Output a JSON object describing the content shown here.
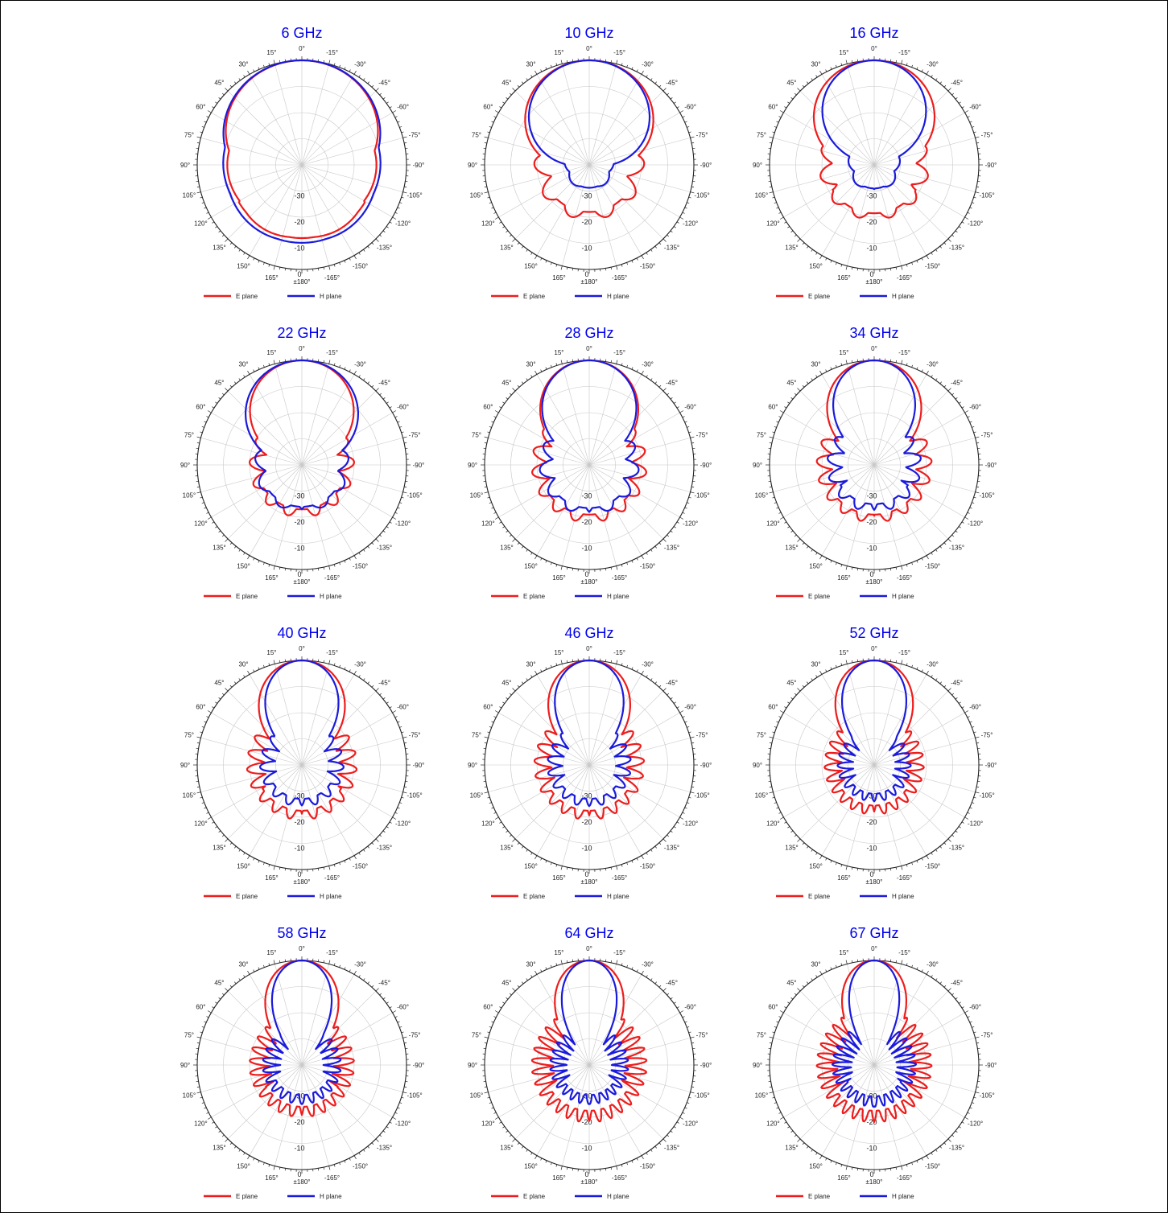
{
  "chart_data": [
    {
      "type": "line",
      "polar": true,
      "title": "6 GHz",
      "series": [
        {
          "name": "E plane",
          "color": "#ee1c1c",
          "min_db": -12.5,
          "peak_width_deg": 80,
          "sidelobe_amp": 1.0,
          "sidelobe_freq": 3
        },
        {
          "name": "H plane",
          "color": "#1a1adc",
          "min_db": -10.5,
          "peak_width_deg": 85,
          "sidelobe_amp": 0.6,
          "sidelobe_freq": 3
        }
      ]
    },
    {
      "type": "line",
      "polar": true,
      "title": "10 GHz",
      "series": [
        {
          "name": "E plane",
          "color": "#ee1c1c",
          "min_db": -25,
          "peak_width_deg": 60,
          "sidelobe_amp": 6,
          "sidelobe_freq": 5
        },
        {
          "name": "H plane",
          "color": "#1a1adc",
          "min_db": -32,
          "peak_width_deg": 55,
          "sidelobe_amp": 1.5,
          "sidelobe_freq": 3
        }
      ]
    },
    {
      "type": "line",
      "polar": true,
      "title": "16 GHz",
      "series": [
        {
          "name": "E plane",
          "color": "#ee1c1c",
          "min_db": -24,
          "peak_width_deg": 55,
          "sidelobe_amp": 5,
          "sidelobe_freq": 6
        },
        {
          "name": "H plane",
          "color": "#1a1adc",
          "min_db": -32,
          "peak_width_deg": 45,
          "sidelobe_amp": 2,
          "sidelobe_freq": 3
        }
      ]
    },
    {
      "type": "line",
      "polar": true,
      "title": "22 GHz",
      "series": [
        {
          "name": "E plane",
          "color": "#ee1c1c",
          "min_db": -26,
          "peak_width_deg": 45,
          "sidelobe_amp": 6,
          "sidelobe_freq": 7
        },
        {
          "name": "H plane",
          "color": "#1a1adc",
          "min_db": -26,
          "peak_width_deg": 50,
          "sidelobe_amp": 4,
          "sidelobe_freq": 5
        }
      ]
    },
    {
      "type": "line",
      "polar": true,
      "title": "28 GHz",
      "series": [
        {
          "name": "E plane",
          "color": "#ee1c1c",
          "min_db": -24,
          "peak_width_deg": 42,
          "sidelobe_amp": 6,
          "sidelobe_freq": 8
        },
        {
          "name": "H plane",
          "color": "#1a1adc",
          "min_db": -26,
          "peak_width_deg": 40,
          "sidelobe_amp": 5,
          "sidelobe_freq": 6
        }
      ]
    },
    {
      "type": "line",
      "polar": true,
      "title": "34 GHz",
      "series": [
        {
          "name": "E plane",
          "color": "#ee1c1c",
          "min_db": -24,
          "peak_width_deg": 40,
          "sidelobe_amp": 6,
          "sidelobe_freq": 9
        },
        {
          "name": "H plane",
          "color": "#1a1adc",
          "min_db": -28,
          "peak_width_deg": 34,
          "sidelobe_amp": 6,
          "sidelobe_freq": 7
        }
      ]
    },
    {
      "type": "line",
      "polar": true,
      "title": "40 GHz",
      "series": [
        {
          "name": "E plane",
          "color": "#ee1c1c",
          "min_db": -26,
          "peak_width_deg": 36,
          "sidelobe_amp": 7,
          "sidelobe_freq": 10
        },
        {
          "name": "H plane",
          "color": "#1a1adc",
          "min_db": -30,
          "peak_width_deg": 30,
          "sidelobe_amp": 6,
          "sidelobe_freq": 8
        }
      ]
    },
    {
      "type": "line",
      "polar": true,
      "title": "46 GHz",
      "series": [
        {
          "name": "E plane",
          "color": "#ee1c1c",
          "min_db": -26,
          "peak_width_deg": 34,
          "sidelobe_amp": 7,
          "sidelobe_freq": 11
        },
        {
          "name": "H plane",
          "color": "#1a1adc",
          "min_db": -30,
          "peak_width_deg": 28,
          "sidelobe_amp": 6,
          "sidelobe_freq": 9
        }
      ]
    },
    {
      "type": "line",
      "polar": true,
      "title": "52 GHz",
      "series": [
        {
          "name": "E plane",
          "color": "#ee1c1c",
          "min_db": -28,
          "peak_width_deg": 32,
          "sidelobe_amp": 7,
          "sidelobe_freq": 12
        },
        {
          "name": "H plane",
          "color": "#1a1adc",
          "min_db": -32,
          "peak_width_deg": 26,
          "sidelobe_amp": 6,
          "sidelobe_freq": 10
        }
      ]
    },
    {
      "type": "line",
      "polar": true,
      "title": "58 GHz",
      "series": [
        {
          "name": "E plane",
          "color": "#ee1c1c",
          "min_db": -28,
          "peak_width_deg": 30,
          "sidelobe_amp": 8,
          "sidelobe_freq": 13
        },
        {
          "name": "H plane",
          "color": "#1a1adc",
          "min_db": -32,
          "peak_width_deg": 24,
          "sidelobe_amp": 7,
          "sidelobe_freq": 11
        }
      ]
    },
    {
      "type": "line",
      "polar": true,
      "title": "64 GHz",
      "series": [
        {
          "name": "E plane",
          "color": "#ee1c1c",
          "min_db": -27,
          "peak_width_deg": 28,
          "sidelobe_amp": 9,
          "sidelobe_freq": 15
        },
        {
          "name": "H plane",
          "color": "#1a1adc",
          "min_db": -32,
          "peak_width_deg": 22,
          "sidelobe_amp": 7,
          "sidelobe_freq": 13
        }
      ]
    },
    {
      "type": "line",
      "polar": true,
      "title": "67 GHz",
      "series": [
        {
          "name": "E plane",
          "color": "#ee1c1c",
          "min_db": -27,
          "peak_width_deg": 26,
          "sidelobe_amp": 9,
          "sidelobe_freq": 16
        },
        {
          "name": "H plane",
          "color": "#1a1adc",
          "min_db": -32,
          "peak_width_deg": 20,
          "sidelobe_amp": 8,
          "sidelobe_freq": 14
        }
      ]
    }
  ],
  "radial_ticks": [
    "0",
    "-10",
    "-20",
    "-30"
  ],
  "radial_range_db": [
    -40,
    0
  ],
  "angle_ticks": [
    "0°",
    "-15°",
    "-30°",
    "-45°",
    "-60°",
    "-75°",
    "-90°",
    "-105°",
    "-120°",
    "-135°",
    "-150°",
    "-165°",
    "±180°",
    "165°",
    "150°",
    "135°",
    "120°",
    "105°",
    "90°",
    "75°",
    "60°",
    "45°",
    "30°",
    "15°"
  ],
  "legend": [
    "E plane",
    "H plane"
  ],
  "colors": {
    "e_plane": "#ee1c1c",
    "h_plane": "#1a1adc",
    "title": "#0000ee",
    "grid": "#c8c8c8"
  }
}
